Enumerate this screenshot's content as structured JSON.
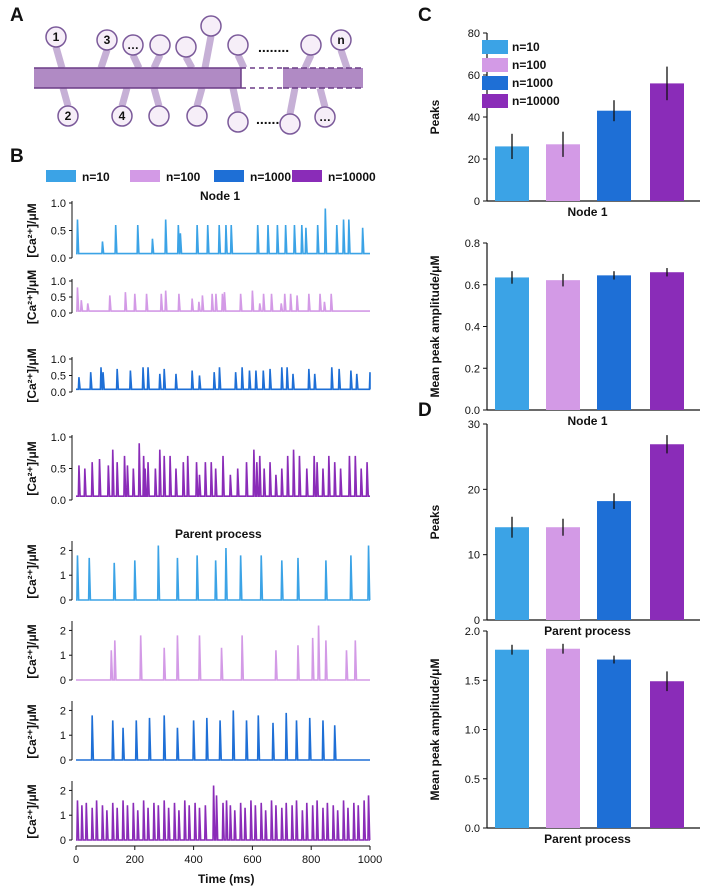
{
  "panels": {
    "A": "A",
    "B": "B",
    "C": "C",
    "D": "D"
  },
  "colors": {
    "n10": "#3ba3e6",
    "n100": "#d39ae6",
    "n1000": "#1e6fd6",
    "n10000": "#8a2cb8",
    "membrane": "#b08ac4",
    "membrane_dark": "#6b3c86",
    "node_fill": "#f6eef8",
    "node_stroke": "#7b5a9a",
    "stalk": "#c6b0d6"
  },
  "schematic": {
    "top_nodes": [
      "1",
      "3",
      "…",
      "",
      "",
      "",
      "",
      "",
      "",
      "n"
    ],
    "bottom_nodes": [
      "2",
      "4",
      "",
      "",
      "",
      "",
      "",
      "…"
    ],
    "dots_top": "........",
    "dots_bottom": "......"
  },
  "chart_data": [
    {
      "id": "B",
      "type": "line",
      "legend": [
        "n=10",
        "n=100",
        "n=1000",
        "n=10000"
      ],
      "xlabel": "Time (ms)",
      "xlim": [
        0,
        1000
      ],
      "xticks": [
        "0",
        "200",
        "400",
        "600",
        "800",
        "1000"
      ],
      "ylabel": "[Ca²⁺]/μM",
      "groups": [
        {
          "title": "Node 1",
          "ylim": [
            0,
            1.0
          ],
          "yticks": [
            "0.0",
            "0.5",
            "1.0"
          ],
          "series": [
            {
              "name": "n=10",
              "peaks_ms": [
                5,
                90,
                135,
                210,
                260,
                305,
                348,
                355,
                412,
                448,
                487,
                510,
                528,
                618,
                653,
                685,
                713,
                743,
                768,
                782,
                822,
                848,
                887,
                910,
                928,
                975
              ],
              "peak_heights": [
                0.7,
                0.3,
                0.6,
                0.6,
                0.35,
                0.7,
                0.6,
                0.45,
                0.6,
                0.6,
                0.6,
                0.6,
                0.6,
                0.6,
                0.6,
                0.6,
                0.6,
                0.6,
                0.6,
                0.55,
                0.6,
                0.9,
                0.6,
                0.7,
                0.7,
                0.55
              ],
              "baseline": 0.08
            },
            {
              "name": "n=100",
              "peaks_ms": [
                5,
                18,
                40,
                115,
                168,
                200,
                240,
                290,
                305,
                350,
                395,
                418,
                430,
                463,
                476,
                498,
                505,
                560,
                600,
                625,
                638,
                665,
                698,
                710,
                730,
                752,
                792,
                830,
                845,
                868
              ],
              "peak_heights": [
                0.8,
                0.4,
                0.3,
                0.55,
                0.65,
                0.6,
                0.6,
                0.6,
                0.7,
                0.6,
                0.45,
                0.35,
                0.55,
                0.6,
                0.6,
                0.6,
                0.65,
                0.6,
                0.7,
                0.3,
                0.6,
                0.6,
                0.3,
                0.6,
                0.6,
                0.55,
                0.6,
                0.6,
                0.35,
                0.6
              ],
              "baseline": 0.06
            },
            {
              "name": "n=1000",
              "peaks_ms": [
                10,
                50,
                85,
                92,
                140,
                185,
                228,
                245,
                285,
                300,
                340,
                395,
                420,
                470,
                488,
                543,
                565,
                590,
                612,
                637,
                660,
                700,
                718,
                738,
                792,
                812,
                870,
                895,
                935,
                955,
                1000
              ],
              "peak_heights": [
                0.45,
                0.6,
                0.75,
                0.6,
                0.7,
                0.65,
                0.75,
                0.75,
                0.55,
                0.7,
                0.55,
                0.65,
                0.5,
                0.6,
                0.75,
                0.6,
                0.75,
                0.65,
                0.65,
                0.65,
                0.7,
                0.75,
                0.75,
                0.55,
                0.7,
                0.55,
                0.75,
                0.7,
                0.65,
                0.55,
                0.6
              ],
              "baseline": 0.08
            },
            {
              "name": "n=10000",
              "peaks_ms": [
                10,
                30,
                55,
                80,
                110,
                125,
                140,
                165,
                175,
                195,
                215,
                230,
                235,
                245,
                270,
                285,
                300,
                320,
                340,
                365,
                380,
                410,
                420,
                440,
                460,
                475,
                500,
                525,
                550,
                580,
                605,
                615,
                625,
                640,
                660,
                680,
                700,
                720,
                740,
                760,
                785,
                810,
                820,
                840,
                860,
                880,
                900,
                930,
                950,
                970,
                990
              ],
              "peak_heights": [
                0.55,
                0.5,
                0.6,
                0.65,
                0.55,
                0.8,
                0.6,
                0.7,
                0.55,
                0.5,
                0.9,
                0.7,
                0.5,
                0.6,
                0.5,
                0.8,
                0.7,
                0.7,
                0.5,
                0.6,
                0.7,
                0.6,
                0.4,
                0.6,
                0.6,
                0.5,
                0.7,
                0.4,
                0.5,
                0.6,
                0.8,
                0.6,
                0.7,
                0.5,
                0.6,
                0.4,
                0.5,
                0.7,
                0.8,
                0.7,
                0.5,
                0.7,
                0.6,
                0.5,
                0.7,
                0.6,
                0.5,
                0.7,
                0.7,
                0.5,
                0.6
              ],
              "baseline": 0.06
            }
          ]
        },
        {
          "title": "Parent process",
          "ylim": [
            0,
            2.3
          ],
          "yticks": [
            "0",
            "1",
            "2"
          ],
          "series": [
            {
              "name": "n=10",
              "peaks_ms": [
                5,
                45,
                130,
                200,
                280,
                345,
                412,
                475,
                510,
                560,
                630,
                700,
                755,
                850,
                935,
                995
              ],
              "peak_heights": [
                1.8,
                1.7,
                1.5,
                1.6,
                2.2,
                1.7,
                1.8,
                1.6,
                2.1,
                1.8,
                1.8,
                1.6,
                1.7,
                1.6,
                1.8,
                2.2
              ],
              "baseline": 0.0
            },
            {
              "name": "n=100",
              "peaks_ms": [
                120,
                132,
                220,
                300,
                345,
                420,
                495,
                565,
                680,
                755,
                805,
                825,
                850,
                920,
                950
              ],
              "peak_heights": [
                1.2,
                1.6,
                1.8,
                1.3,
                1.8,
                1.8,
                1.3,
                1.8,
                1.2,
                1.4,
                1.7,
                2.2,
                1.6,
                1.2,
                1.6
              ],
              "baseline": 0.0
            },
            {
              "name": "n=1000",
              "peaks_ms": [
                55,
                125,
                160,
                205,
                250,
                300,
                345,
                400,
                445,
                490,
                535,
                580,
                620,
                670,
                715,
                750,
                795,
                840,
                880
              ],
              "peak_heights": [
                1.8,
                1.6,
                1.3,
                1.6,
                1.7,
                1.8,
                1.3,
                1.6,
                1.7,
                1.6,
                2.0,
                1.6,
                1.8,
                1.5,
                1.9,
                1.6,
                1.7,
                1.6,
                1.4
              ],
              "baseline": 0.0
            },
            {
              "name": "n=10000",
              "peaks_ms": [
                5,
                20,
                35,
                55,
                70,
                90,
                105,
                125,
                140,
                160,
                175,
                195,
                210,
                230,
                245,
                265,
                280,
                300,
                315,
                335,
                350,
                370,
                385,
                405,
                420,
                440,
                468,
                478,
                500,
                512,
                525,
                540,
                560,
                575,
                595,
                610,
                630,
                645,
                665,
                680,
                700,
                715,
                735,
                750,
                770,
                785,
                805,
                820,
                840,
                855,
                875,
                890,
                910,
                925,
                945,
                960,
                980,
                995
              ],
              "peak_heights": [
                1.6,
                1.4,
                1.5,
                1.3,
                1.6,
                1.4,
                1.2,
                1.5,
                1.3,
                1.6,
                1.4,
                1.5,
                1.2,
                1.6,
                1.3,
                1.5,
                1.4,
                1.6,
                1.3,
                1.5,
                1.2,
                1.6,
                1.4,
                1.5,
                1.3,
                1.4,
                2.2,
                1.8,
                1.5,
                1.6,
                1.4,
                1.2,
                1.5,
                1.3,
                1.6,
                1.4,
                1.5,
                1.2,
                1.6,
                1.4,
                1.3,
                1.5,
                1.4,
                1.6,
                1.2,
                1.5,
                1.4,
                1.6,
                1.3,
                1.5,
                1.4,
                1.2,
                1.6,
                1.3,
                1.5,
                1.4,
                1.6,
                1.8
              ],
              "baseline": 0.0
            }
          ]
        }
      ]
    },
    {
      "id": "C-peaks",
      "type": "bar",
      "categories": [
        "n=10",
        "n=100",
        "n=1000",
        "n=10000"
      ],
      "values": [
        26,
        27,
        43,
        56
      ],
      "errors": [
        6,
        6,
        5,
        8
      ],
      "ylabel": "Peaks",
      "xlabel": "Node 1",
      "ylim": [
        0,
        80
      ],
      "yticks": [
        "0",
        "20",
        "40",
        "60",
        "80"
      ]
    },
    {
      "id": "C-amp",
      "type": "bar",
      "categories": [
        "n=10",
        "n=100",
        "n=1000",
        "n=10000"
      ],
      "values": [
        0.635,
        0.622,
        0.645,
        0.66
      ],
      "errors": [
        0.03,
        0.03,
        0.02,
        0.02
      ],
      "ylabel": "Mean peak amplitude/μM",
      "xlabel": "Node 1",
      "ylim": [
        0,
        0.8
      ],
      "yticks": [
        "0.0",
        "0.2",
        "0.4",
        "0.6",
        "0.8"
      ]
    },
    {
      "id": "D-peaks",
      "type": "bar",
      "categories": [
        "n=10",
        "n=100",
        "n=1000",
        "n=10000"
      ],
      "values": [
        14.2,
        14.2,
        18.2,
        26.9
      ],
      "errors": [
        1.6,
        1.3,
        1.2,
        1.4
      ],
      "ylabel": "Peaks",
      "xlabel": "Parent process",
      "ylim": [
        0,
        30
      ],
      "yticks": [
        "0",
        "10",
        "20",
        "30"
      ]
    },
    {
      "id": "D-amp",
      "type": "bar",
      "categories": [
        "n=10",
        "n=100",
        "n=1000",
        "n=10000"
      ],
      "values": [
        1.81,
        1.82,
        1.71,
        1.49
      ],
      "errors": [
        0.05,
        0.05,
        0.04,
        0.1
      ],
      "ylabel": "Mean peak amplitude/μM",
      "xlabel": "Parent process",
      "ylim": [
        0,
        2.0
      ],
      "yticks": [
        "0.0",
        "0.5",
        "1.0",
        "1.5",
        "2.0"
      ]
    }
  ]
}
